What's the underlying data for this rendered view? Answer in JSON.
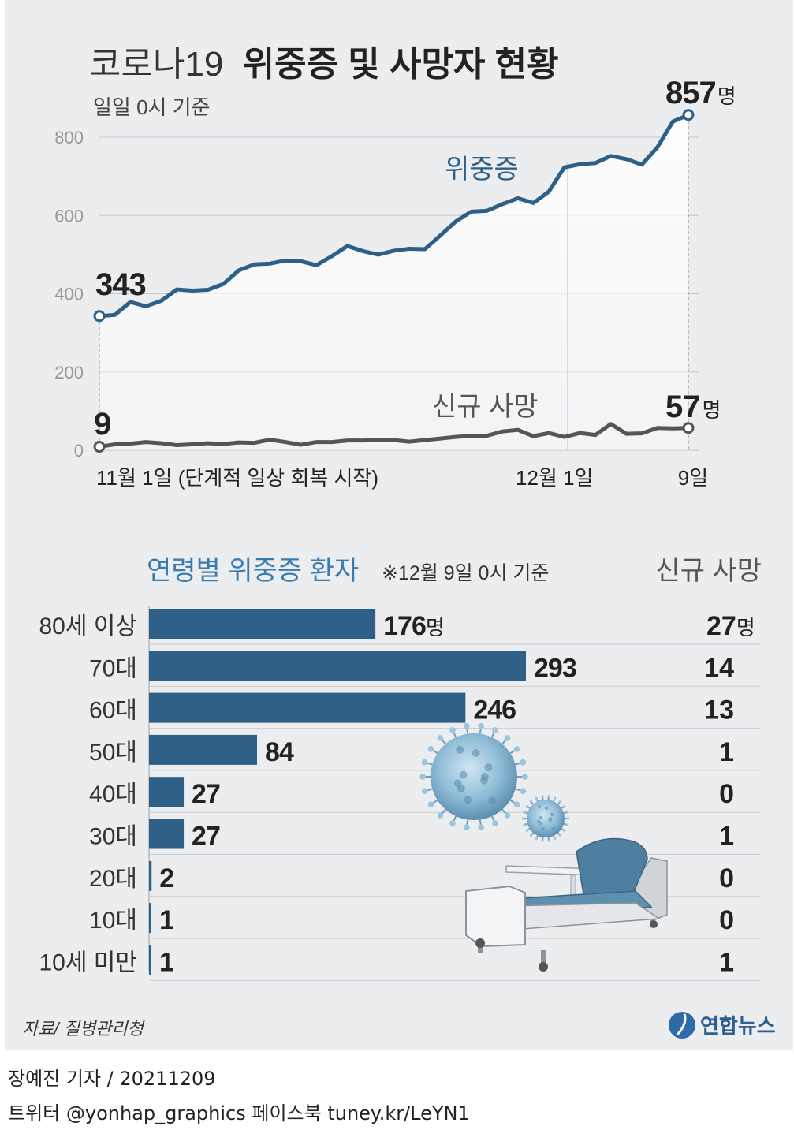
{
  "title_light": "코로나19",
  "title_bold": "위중증 및 사망자 현황",
  "subtitle": "일일 0시 기준",
  "chart_data": [
    {
      "type": "line",
      "yticks": [
        0,
        200,
        400,
        600,
        800
      ],
      "ylim": [
        0,
        860
      ],
      "x_labels": [
        "11월 1일 (단계적 일상 회복 시작)",
        "12월 1일",
        "9일"
      ],
      "series": [
        {
          "name": "위중증",
          "color": "#2d5f87",
          "values": [
            343,
            346,
            379,
            368,
            382,
            411,
            408,
            410,
            425,
            460,
            475,
            477,
            485,
            483,
            473,
            496,
            522,
            509,
            500,
            510,
            515,
            514,
            549,
            585,
            610,
            612,
            629,
            644,
            632,
            661,
            723,
            731,
            734,
            752,
            744,
            730,
            774,
            840,
            857
          ],
          "start_label": "343",
          "end_value": "857",
          "end_unit": "명"
        },
        {
          "name": "신규 사망",
          "color": "#555555",
          "values": [
            9,
            15,
            17,
            21,
            18,
            13,
            15,
            18,
            16,
            20,
            19,
            27,
            21,
            14,
            21,
            21,
            25,
            25,
            26,
            26,
            22,
            26,
            30,
            34,
            37,
            37,
            48,
            52,
            36,
            44,
            34,
            44,
            39,
            67,
            42,
            43,
            57,
            56,
            57
          ],
          "start_label": "9",
          "end_value": "57",
          "end_unit": "명"
        }
      ]
    },
    {
      "type": "bar",
      "title": "연령별 위중증 환자",
      "note": "※12월 9일 0시 기준",
      "right_header": "신규 사망",
      "categories": [
        "80세 이상",
        "70대",
        "60대",
        "50대",
        "40대",
        "30대",
        "20대",
        "10대",
        "10세 미만"
      ],
      "values": [
        176,
        293,
        246,
        84,
        27,
        27,
        2,
        1,
        1
      ],
      "value_labels": [
        "176명",
        "293",
        "246",
        "84",
        "27",
        "27",
        "2",
        "1",
        "1"
      ],
      "deaths": [
        "27명",
        "14",
        "13",
        "1",
        "0",
        "1",
        "0",
        "0",
        "1"
      ],
      "bar_color": "#2d5f87"
    }
  ],
  "source": "자료/ 질병관리청",
  "logo_text": "연합뉴스",
  "reporter": "장예진 기자 / 20211209",
  "social": "트위터 @yonhap_graphics  페이스북 tuney.kr/LeYN1"
}
